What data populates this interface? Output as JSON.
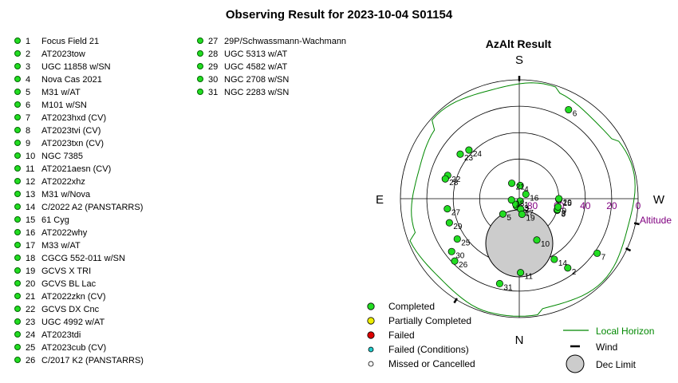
{
  "page": {
    "title": "Observing Result for 2023-10-04 S01154"
  },
  "targets": [
    {
      "n": "1",
      "name": "Focus Field 21"
    },
    {
      "n": "2",
      "name": "AT2023tow"
    },
    {
      "n": "3",
      "name": "UGC 11858 w/SN"
    },
    {
      "n": "4",
      "name": "Nova Cas 2021"
    },
    {
      "n": "5",
      "name": "M31 w/AT"
    },
    {
      "n": "6",
      "name": "M101 w/SN"
    },
    {
      "n": "7",
      "name": "AT2023hxd (CV)"
    },
    {
      "n": "8",
      "name": "AT2023tvi (CV)"
    },
    {
      "n": "9",
      "name": "AT2023txn (CV)"
    },
    {
      "n": "10",
      "name": "NGC 7385"
    },
    {
      "n": "11",
      "name": "AT2021aesn (CV)"
    },
    {
      "n": "12",
      "name": "AT2022xhz"
    },
    {
      "n": "13",
      "name": "M31 w/Nova"
    },
    {
      "n": "14",
      "name": "C/2022 A2 (PANSTARRS)"
    },
    {
      "n": "15",
      "name": "61 Cyg"
    },
    {
      "n": "16",
      "name": "AT2022why"
    },
    {
      "n": "17",
      "name": "M33 w/AT"
    },
    {
      "n": "18",
      "name": "CGCG 552-011 w/SN"
    },
    {
      "n": "19",
      "name": "GCVS X TRI"
    },
    {
      "n": "20",
      "name": "GCVS BL Lac"
    },
    {
      "n": "21",
      "name": "AT2022zkn (CV)"
    },
    {
      "n": "22",
      "name": "GCVS DX Cnc"
    },
    {
      "n": "23",
      "name": "UGC 4992 w/AT"
    },
    {
      "n": "24",
      "name": "AT2023tdi"
    },
    {
      "n": "25",
      "name": "AT2023cub (CV)"
    },
    {
      "n": "26",
      "name": "C/2017 K2 (PANSTARRS)"
    },
    {
      "n": "27",
      "name": "29P/Schwassmann-Wachmann"
    },
    {
      "n": "28",
      "name": "UGC 5313 w/AT"
    },
    {
      "n": "29",
      "name": "UGC 4582 w/AT"
    },
    {
      "n": "30",
      "name": "NGC 2708 w/SN"
    },
    {
      "n": "31",
      "name": "NGC 2283 w/SN"
    }
  ],
  "chart_data": {
    "type": "scatter",
    "title": "AzAlt Result",
    "coordinate_system": "polar azimuth/altitude, zenith at centre, S at top, W right, E left, N bottom",
    "compass": {
      "S": "S",
      "W": "W",
      "N": "N",
      "E": "E"
    },
    "radial_axis": {
      "label": "Altitude",
      "ticks": [
        "80",
        "60",
        "40",
        "20",
        "0"
      ],
      "range": [
        90,
        0
      ]
    },
    "colors": {
      "completed": "#22dd22",
      "partial": "#eeee00",
      "failed": "#dd0000",
      "failed_conditions": "#22cccc",
      "missed": "#ffffff",
      "horizon": "#008800",
      "dec_limit": "#cccccc",
      "altitude_text": "#800080"
    },
    "points": [
      {
        "label": "1",
        "az": 200,
        "alt": 88
      },
      {
        "label": "2",
        "az": 215,
        "alt": 26
      },
      {
        "label": "3",
        "az": 253,
        "alt": 60
      },
      {
        "label": "4",
        "az": 356,
        "alt": 80
      },
      {
        "label": "5",
        "az": 133,
        "alt": 73
      },
      {
        "label": "6",
        "az": 331,
        "alt": 13
      },
      {
        "label": "7",
        "az": 235,
        "alt": 18
      },
      {
        "label": "8",
        "az": 254,
        "alt": 60
      },
      {
        "label": "9",
        "az": 258,
        "alt": 60
      },
      {
        "label": "10",
        "az": 203,
        "alt": 56
      },
      {
        "label": "11",
        "az": 181,
        "alt": 34
      },
      {
        "label": "12",
        "az": 159,
        "alt": 84
      },
      {
        "label": "13",
        "az": 148,
        "alt": 85
      },
      {
        "label": "14",
        "az": 210,
        "alt": 37
      },
      {
        "label": "15",
        "az": 269,
        "alt": 60
      },
      {
        "label": "16",
        "az": 304,
        "alt": 84
      },
      {
        "label": "17",
        "az": 188,
        "alt": 82
      },
      {
        "label": "18",
        "az": 99,
        "alt": 84
      },
      {
        "label": "19",
        "az": 190,
        "alt": 78
      },
      {
        "label": "20",
        "az": 270,
        "alt": 60
      },
      {
        "label": "21",
        "az": 26,
        "alt": 77
      },
      {
        "label": "22",
        "az": 72,
        "alt": 33
      },
      {
        "label": "23",
        "az": 53,
        "alt": 34
      },
      {
        "label": "24",
        "az": 46,
        "alt": 37
      },
      {
        "label": "25",
        "az": 123,
        "alt": 34
      },
      {
        "label": "26",
        "az": 134,
        "alt": 22
      },
      {
        "label": "27",
        "az": 98,
        "alt": 35
      },
      {
        "label": "28",
        "az": 75,
        "alt": 32
      },
      {
        "label": "29",
        "az": 109,
        "alt": 34
      },
      {
        "label": "30",
        "az": 128,
        "alt": 25
      },
      {
        "label": "31",
        "az": 167,
        "alt": 24
      }
    ],
    "legend": {
      "placement": "bottom",
      "items": [
        "Completed",
        "Partially Completed",
        "Failed",
        "Failed (Conditions)",
        "Missed or Cancelled",
        "Local Horizon",
        "Wind",
        "Dec Limit"
      ]
    }
  }
}
